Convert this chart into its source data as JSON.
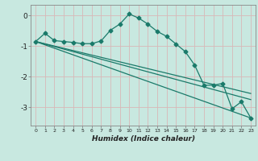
{
  "xlabel": "Humidex (Indice chaleur)",
  "bg_color": "#c8e8e0",
  "grid_color": "#b0d8cf",
  "line_color": "#1a7a6a",
  "xlim": [
    -0.5,
    23.5
  ],
  "ylim": [
    -3.6,
    0.35
  ],
  "yticks": [
    0,
    -1,
    -2,
    -3
  ],
  "xticks": [
    0,
    1,
    2,
    3,
    4,
    5,
    6,
    7,
    8,
    9,
    10,
    11,
    12,
    13,
    14,
    15,
    16,
    17,
    18,
    19,
    20,
    21,
    22,
    23
  ],
  "series1_x": [
    0,
    1,
    2,
    3,
    4,
    5,
    6,
    7,
    8,
    9,
    10,
    11,
    12,
    13,
    14,
    15,
    16,
    17,
    18,
    19,
    20,
    21,
    22,
    23
  ],
  "series1_y": [
    -0.85,
    -0.58,
    -0.82,
    -0.85,
    -0.88,
    -0.92,
    -0.92,
    -0.83,
    -0.48,
    -0.28,
    0.05,
    -0.08,
    -0.28,
    -0.52,
    -0.68,
    -0.93,
    -1.18,
    -1.62,
    -2.28,
    -2.28,
    -2.22,
    -3.05,
    -2.82,
    -3.35
  ],
  "series2_x": [
    0,
    23
  ],
  "series2_y": [
    -0.85,
    -2.55
  ],
  "series3_x": [
    0,
    23
  ],
  "series3_y": [
    -0.85,
    -2.75
  ],
  "series4_x": [
    0,
    23
  ],
  "series4_y": [
    -0.85,
    -3.35
  ]
}
